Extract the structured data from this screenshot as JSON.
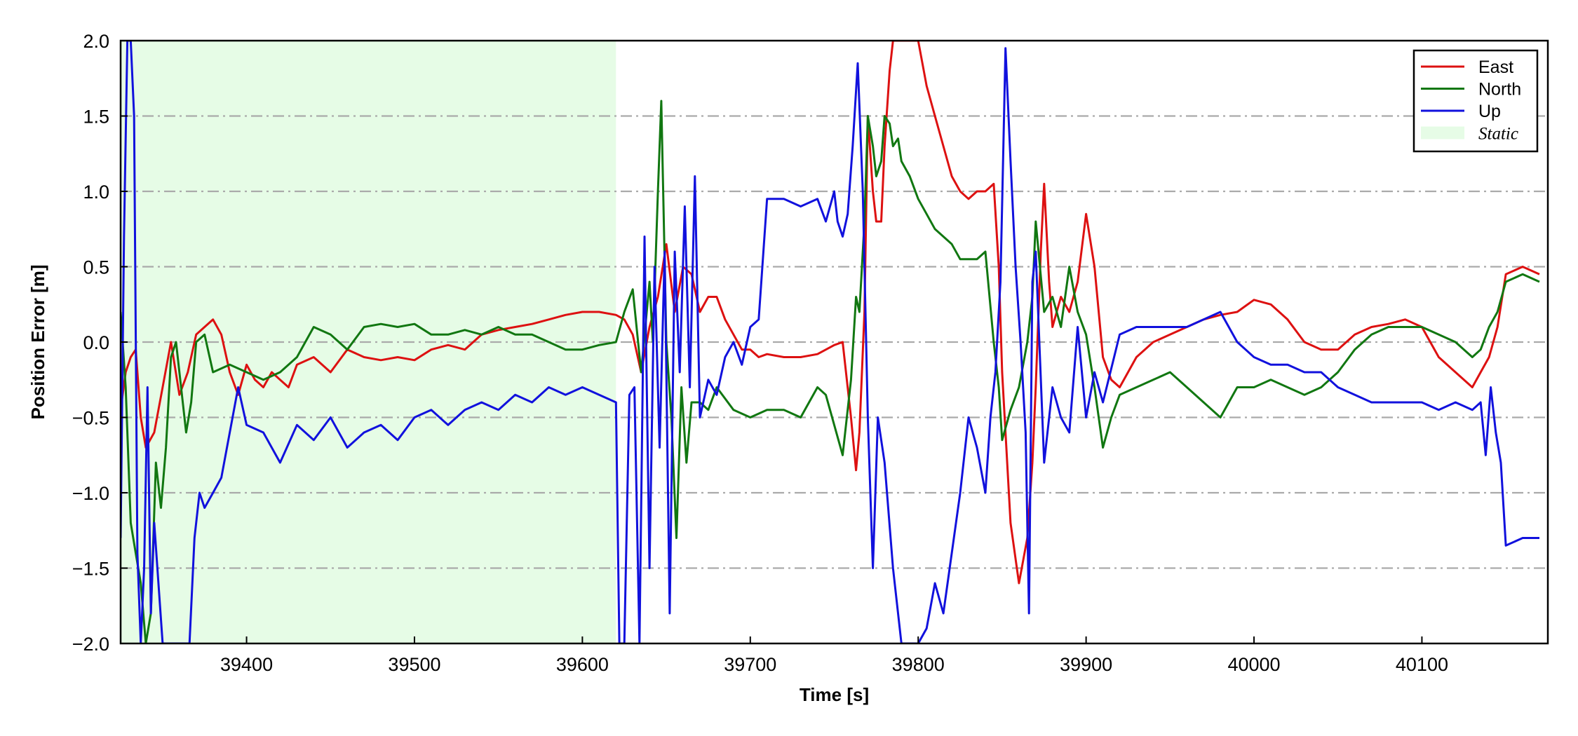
{
  "chart_data": {
    "type": "line",
    "xlabel": "Time [s]",
    "ylabel": "Position Error [m]",
    "xlim": [
      39325,
      40175
    ],
    "ylim": [
      -2.0,
      2.0
    ],
    "xticks": [
      39400,
      39500,
      39600,
      39700,
      39800,
      39900,
      40000,
      40100
    ],
    "xtick_labels": [
      "39400",
      "39500",
      "39600",
      "39700",
      "39800",
      "39900",
      "40000",
      "40100"
    ],
    "yticks": [
      -2.0,
      -1.5,
      -1.0,
      -0.5,
      0.0,
      0.5,
      1.0,
      1.5,
      2.0
    ],
    "ytick_labels": [
      "−2.0",
      "−1.5",
      "−1.0",
      "−0.5",
      "0.0",
      "0.5",
      "1.0",
      "1.5",
      "2.0"
    ],
    "grid": "horizontal dash-dot",
    "legend_position": "top-right",
    "static_region": {
      "name": "Static",
      "x_start": 39325,
      "x_end": 39620,
      "color": "#e6fce6"
    },
    "series": [
      {
        "name": "East",
        "color": "#dd1111",
        "x": [
          39325,
          39328,
          39331,
          39334,
          39337,
          39340,
          39345,
          39350,
          39355,
          39360,
          39365,
          39370,
          39375,
          39380,
          39385,
          39390,
          39395,
          39400,
          39405,
          39410,
          39415,
          39420,
          39425,
          39430,
          39440,
          39450,
          39460,
          39470,
          39480,
          39490,
          39500,
          39510,
          39520,
          39530,
          39540,
          39550,
          39560,
          39570,
          39580,
          39590,
          39600,
          39610,
          39620,
          39625,
          39630,
          39635,
          39640,
          39645,
          39650,
          39655,
          39660,
          39665,
          39670,
          39675,
          39680,
          39685,
          39690,
          39695,
          39700,
          39705,
          39710,
          39720,
          39730,
          39740,
          39750,
          39755,
          39760,
          39763,
          39765,
          39768,
          39770,
          39773,
          39775,
          39778,
          39780,
          39783,
          39785,
          39790,
          39795,
          39800,
          39805,
          39810,
          39815,
          39820,
          39825,
          39830,
          39835,
          39840,
          39845,
          39848,
          39850,
          39855,
          39860,
          39865,
          39868,
          39870,
          39873,
          39875,
          39878,
          39880,
          39885,
          39890,
          39895,
          39900,
          39905,
          39910,
          39915,
          39920,
          39930,
          39940,
          39950,
          39960,
          39970,
          39980,
          39990,
          40000,
          40010,
          40020,
          40030,
          40040,
          40050,
          40060,
          40070,
          40080,
          40090,
          40100,
          40110,
          40120,
          40130,
          40135,
          40140,
          40145,
          40150,
          40160,
          40170
        ],
        "y": [
          -0.45,
          -0.2,
          -0.1,
          -0.05,
          -0.5,
          -0.7,
          -0.6,
          -0.3,
          0.0,
          -0.35,
          -0.2,
          0.05,
          0.1,
          0.15,
          0.05,
          -0.2,
          -0.35,
          -0.15,
          -0.25,
          -0.3,
          -0.2,
          -0.25,
          -0.3,
          -0.15,
          -0.1,
          -0.2,
          -0.05,
          -0.1,
          -0.12,
          -0.1,
          -0.12,
          -0.05,
          -0.02,
          -0.05,
          0.05,
          0.08,
          0.1,
          0.12,
          0.15,
          0.18,
          0.2,
          0.2,
          0.18,
          0.15,
          0.05,
          -0.2,
          0.1,
          0.3,
          0.65,
          0.2,
          0.5,
          0.45,
          0.2,
          0.3,
          0.3,
          0.15,
          0.05,
          -0.05,
          -0.05,
          -0.1,
          -0.08,
          -0.1,
          -0.1,
          -0.08,
          -0.02,
          0.0,
          -0.5,
          -0.85,
          -0.6,
          0.2,
          1.5,
          1.0,
          0.8,
          0.8,
          1.3,
          1.8,
          2.0,
          2.0,
          2.0,
          2.0,
          1.7,
          1.5,
          1.3,
          1.1,
          1.0,
          0.95,
          1.0,
          1.0,
          1.05,
          0.5,
          -0.2,
          -1.2,
          -1.6,
          -1.3,
          -0.8,
          -0.3,
          0.6,
          1.05,
          0.4,
          0.1,
          0.3,
          0.2,
          0.4,
          0.85,
          0.5,
          -0.1,
          -0.25,
          -0.3,
          -0.1,
          0.0,
          0.05,
          0.1,
          0.15,
          0.18,
          0.2,
          0.28,
          0.25,
          0.15,
          0.0,
          -0.05,
          -0.05,
          0.05,
          0.1,
          0.12,
          0.15,
          0.1,
          -0.1,
          -0.2,
          -0.3,
          -0.2,
          -0.1,
          0.1,
          0.45,
          0.5,
          0.45
        ]
      },
      {
        "name": "North",
        "color": "#117711",
        "x": [
          39325,
          39328,
          39331,
          39334,
          39337,
          39340,
          39343,
          39346,
          39349,
          39352,
          39355,
          39358,
          39361,
          39364,
          39367,
          39370,
          39375,
          39380,
          39390,
          39400,
          39410,
          39420,
          39430,
          39440,
          39450,
          39460,
          39470,
          39480,
          39490,
          39500,
          39510,
          39520,
          39530,
          39540,
          39550,
          39560,
          39570,
          39580,
          39590,
          39600,
          39610,
          39620,
          39625,
          39630,
          39635,
          39640,
          39642,
          39645,
          39647,
          39650,
          39653,
          39656,
          39659,
          39662,
          39665,
          39670,
          39675,
          39680,
          39690,
          39700,
          39710,
          39720,
          39730,
          39740,
          39745,
          39750,
          39755,
          39760,
          39763,
          39765,
          39768,
          39770,
          39773,
          39775,
          39778,
          39780,
          39783,
          39785,
          39788,
          39790,
          39795,
          39800,
          39805,
          39810,
          39815,
          39820,
          39825,
          39830,
          39835,
          39840,
          39845,
          39848,
          39850,
          39855,
          39860,
          39865,
          39868,
          39870,
          39875,
          39880,
          39885,
          39890,
          39895,
          39900,
          39905,
          39910,
          39915,
          39920,
          39930,
          39940,
          39950,
          39960,
          39970,
          39980,
          39990,
          40000,
          40010,
          40020,
          40030,
          40040,
          40050,
          40060,
          40070,
          40080,
          40090,
          40100,
          40110,
          40120,
          40130,
          40135,
          40140,
          40145,
          40150,
          40160,
          40170
        ],
        "y": [
          0.2,
          -0.3,
          -1.2,
          -1.4,
          -1.6,
          -2.0,
          -1.8,
          -0.8,
          -1.1,
          -0.7,
          -0.1,
          0.0,
          -0.3,
          -0.6,
          -0.4,
          0.0,
          0.05,
          -0.2,
          -0.15,
          -0.2,
          -0.25,
          -0.2,
          -0.1,
          0.1,
          0.05,
          -0.05,
          0.1,
          0.12,
          0.1,
          0.12,
          0.05,
          0.05,
          0.08,
          0.05,
          0.1,
          0.05,
          0.05,
          0.0,
          -0.05,
          -0.05,
          -0.02,
          0.0,
          0.2,
          0.35,
          -0.2,
          0.4,
          0.0,
          1.0,
          1.6,
          0.0,
          -0.5,
          -1.3,
          -0.3,
          -0.8,
          -0.4,
          -0.4,
          -0.45,
          -0.3,
          -0.45,
          -0.5,
          -0.45,
          -0.45,
          -0.5,
          -0.3,
          -0.35,
          -0.55,
          -0.75,
          -0.25,
          0.3,
          0.2,
          0.8,
          1.5,
          1.3,
          1.1,
          1.2,
          1.5,
          1.45,
          1.3,
          1.35,
          1.2,
          1.1,
          0.95,
          0.85,
          0.75,
          0.7,
          0.65,
          0.55,
          0.55,
          0.55,
          0.6,
          0.0,
          -0.3,
          -0.65,
          -0.45,
          -0.3,
          0.0,
          0.3,
          0.8,
          0.2,
          0.3,
          0.1,
          0.5,
          0.2,
          0.05,
          -0.3,
          -0.7,
          -0.5,
          -0.35,
          -0.3,
          -0.25,
          -0.2,
          -0.3,
          -0.4,
          -0.5,
          -0.3,
          -0.3,
          -0.25,
          -0.3,
          -0.35,
          -0.3,
          -0.2,
          -0.05,
          0.05,
          0.1,
          0.1,
          0.1,
          0.05,
          0.0,
          -0.1,
          -0.05,
          0.1,
          0.2,
          0.4,
          0.45,
          0.4
        ]
      },
      {
        "name": "Up",
        "color": "#1111dd",
        "x": [
          39325,
          39327,
          39329,
          39331,
          39333,
          39335,
          39337,
          39339,
          39341,
          39343,
          39345,
          39350,
          39355,
          39360,
          39363,
          39366,
          39369,
          39372,
          39375,
          39380,
          39385,
          39390,
          39395,
          39400,
          39410,
          39420,
          39430,
          39440,
          39450,
          39460,
          39470,
          39480,
          39490,
          39500,
          39510,
          39520,
          39530,
          39540,
          39550,
          39560,
          39570,
          39580,
          39590,
          39600,
          39610,
          39620,
          39622,
          39625,
          39628,
          39631,
          39634,
          39637,
          39640,
          39643,
          39646,
          39649,
          39652,
          39655,
          39658,
          39661,
          39664,
          39667,
          39670,
          39675,
          39680,
          39685,
          39690,
          39695,
          39700,
          39705,
          39710,
          39720,
          39730,
          39740,
          39745,
          39750,
          39752,
          39755,
          39758,
          39761,
          39764,
          39767,
          39770,
          39773,
          39776,
          39780,
          39785,
          39790,
          39795,
          39800,
          39805,
          39810,
          39815,
          39820,
          39825,
          39830,
          39835,
          39840,
          39843,
          39846,
          39849,
          39852,
          39855,
          39858,
          39861,
          39864,
          39866,
          39868,
          39870,
          39875,
          39880,
          39885,
          39890,
          39895,
          39900,
          39905,
          39910,
          39920,
          39930,
          39940,
          39950,
          39960,
          39970,
          39980,
          39990,
          40000,
          40010,
          40020,
          40030,
          40040,
          40050,
          40060,
          40070,
          40080,
          40090,
          40100,
          40110,
          40120,
          40130,
          40135,
          40138,
          40141,
          40144,
          40147,
          40150,
          40160,
          40170
        ],
        "y": [
          -1.3,
          0.7,
          2.0,
          2.0,
          1.5,
          -1.4,
          -2.0,
          -1.5,
          -0.3,
          -1.8,
          -1.2,
          -2.0,
          -2.0,
          -2.0,
          -2.0,
          -2.0,
          -1.3,
          -1.0,
          -1.1,
          -1.0,
          -0.9,
          -0.6,
          -0.3,
          -0.55,
          -0.6,
          -0.8,
          -0.55,
          -0.65,
          -0.5,
          -0.7,
          -0.6,
          -0.55,
          -0.65,
          -0.5,
          -0.45,
          -0.55,
          -0.45,
          -0.4,
          -0.45,
          -0.35,
          -0.4,
          -0.3,
          -0.35,
          -0.3,
          -0.35,
          -0.4,
          -2.0,
          -2.0,
          -0.35,
          -0.3,
          -2.0,
          0.7,
          -1.5,
          0.5,
          -0.7,
          0.6,
          -1.8,
          0.6,
          -0.2,
          0.9,
          -0.3,
          1.1,
          -0.5,
          -0.25,
          -0.35,
          -0.1,
          0.0,
          -0.15,
          0.1,
          0.15,
          0.95,
          0.95,
          0.9,
          0.95,
          0.8,
          1.0,
          0.8,
          0.7,
          0.85,
          1.3,
          1.85,
          1.0,
          -0.5,
          -1.5,
          -0.5,
          -0.8,
          -1.5,
          -2.0,
          -2.0,
          -2.0,
          -1.9,
          -1.6,
          -1.8,
          -1.4,
          -1.0,
          -0.5,
          -0.7,
          -1.0,
          -0.5,
          -0.2,
          0.4,
          1.95,
          1.2,
          0.5,
          0.0,
          -0.6,
          -1.8,
          0.4,
          0.6,
          -0.8,
          -0.3,
          -0.5,
          -0.6,
          0.1,
          -0.5,
          -0.2,
          -0.4,
          0.05,
          0.1,
          0.1,
          0.1,
          0.1,
          0.15,
          0.2,
          0.0,
          -0.1,
          -0.15,
          -0.15,
          -0.2,
          -0.2,
          -0.3,
          -0.35,
          -0.4,
          -0.4,
          -0.4,
          -0.4,
          -0.45,
          -0.4,
          -0.45,
          -0.4,
          -0.75,
          -0.3,
          -0.6,
          -0.8,
          -1.35,
          -1.3,
          -1.3
        ]
      }
    ]
  }
}
